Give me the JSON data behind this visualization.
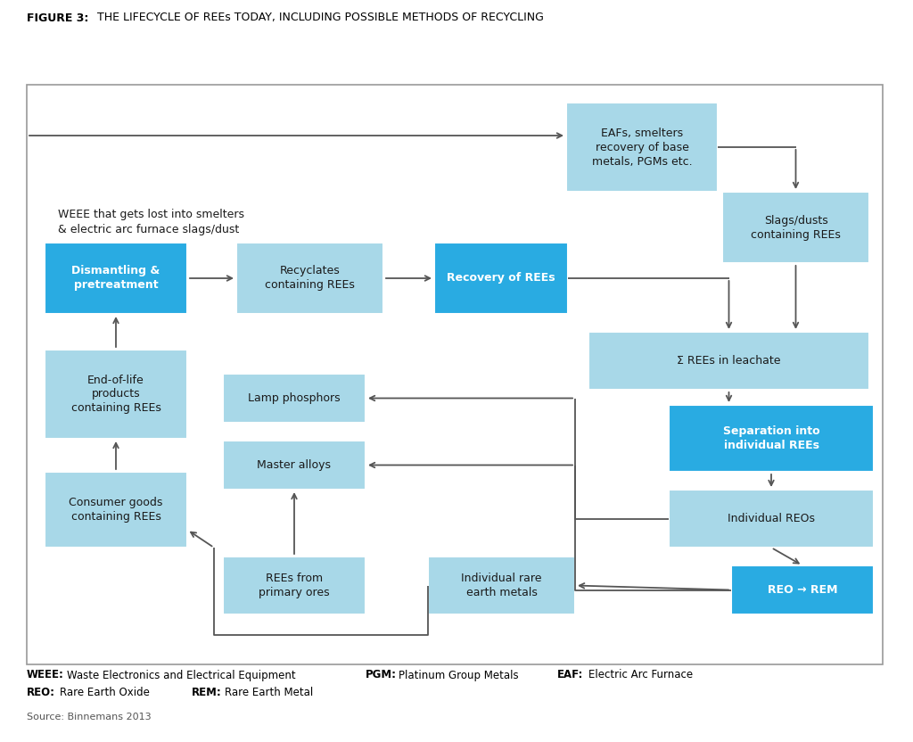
{
  "title_bold": "FIGURE 3:",
  "title_rest": " THE LIFECYCLE OF REEs TODAY, INCLUDING POSSIBLE METHODS OF RECYCLING",
  "color_bright_blue": "#29ABE2",
  "color_light_blue": "#A8D8E8",
  "color_white": "#FFFFFF",
  "color_arrow": "#555555",
  "color_border": "#999999",
  "bg_color": "#FFFFFF",
  "weee_text": "WEEE that gets lost into smelters\n& electric arc furnace slags/dust"
}
